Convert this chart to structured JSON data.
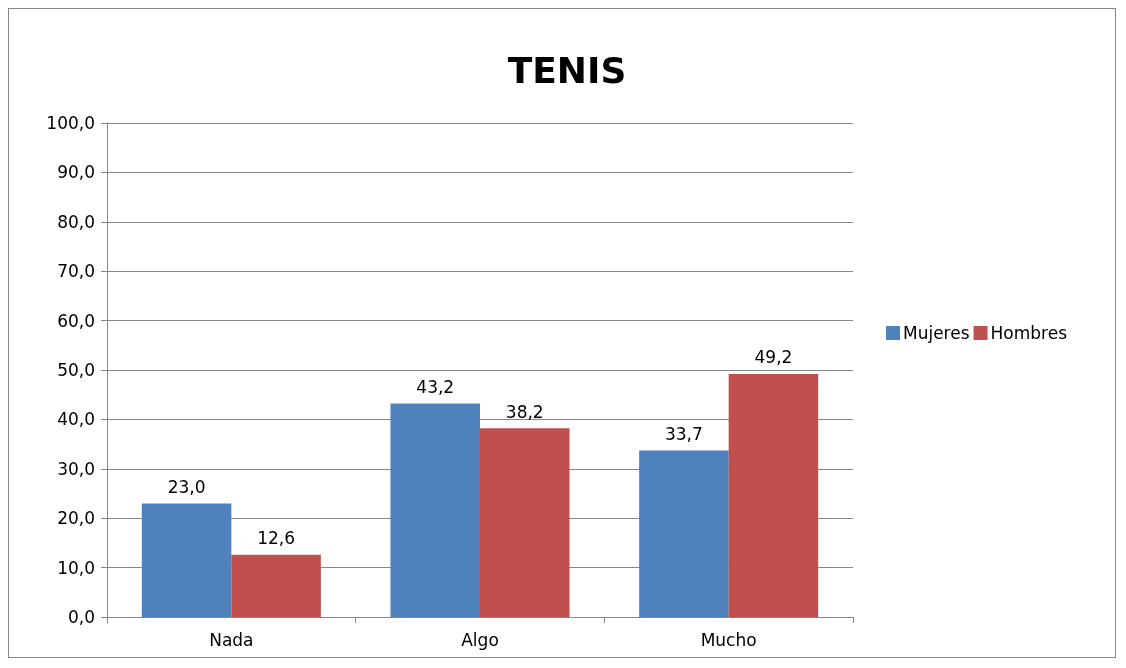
{
  "chart_data": {
    "type": "bar",
    "title": "TENIS",
    "categories": [
      "Nada",
      "Algo",
      "Mucho"
    ],
    "series": [
      {
        "name": "Mujeres",
        "color": "#4f81bd",
        "values": [
          23.0,
          43.2,
          33.7
        ],
        "value_labels": [
          "23,0",
          "43,2",
          "33,7"
        ]
      },
      {
        "name": "Hombres",
        "color": "#c0504d",
        "values": [
          12.6,
          38.2,
          49.2
        ],
        "value_labels": [
          "12,6",
          "38,2",
          "49,2"
        ]
      }
    ],
    "ylim": [
      0,
      100
    ],
    "yticks": [
      {
        "value": 0,
        "label": "0,0"
      },
      {
        "value": 10,
        "label": "10,0"
      },
      {
        "value": 20,
        "label": "20,0"
      },
      {
        "value": 30,
        "label": "30,0"
      },
      {
        "value": 40,
        "label": "40,0"
      },
      {
        "value": 50,
        "label": "50,0"
      },
      {
        "value": 60,
        "label": "60,0"
      },
      {
        "value": 70,
        "label": "70,0"
      },
      {
        "value": 80,
        "label": "80,0"
      },
      {
        "value": 90,
        "label": "90,0"
      },
      {
        "value": 100,
        "label": "100,0"
      }
    ],
    "grid": "y",
    "legend": "right"
  }
}
